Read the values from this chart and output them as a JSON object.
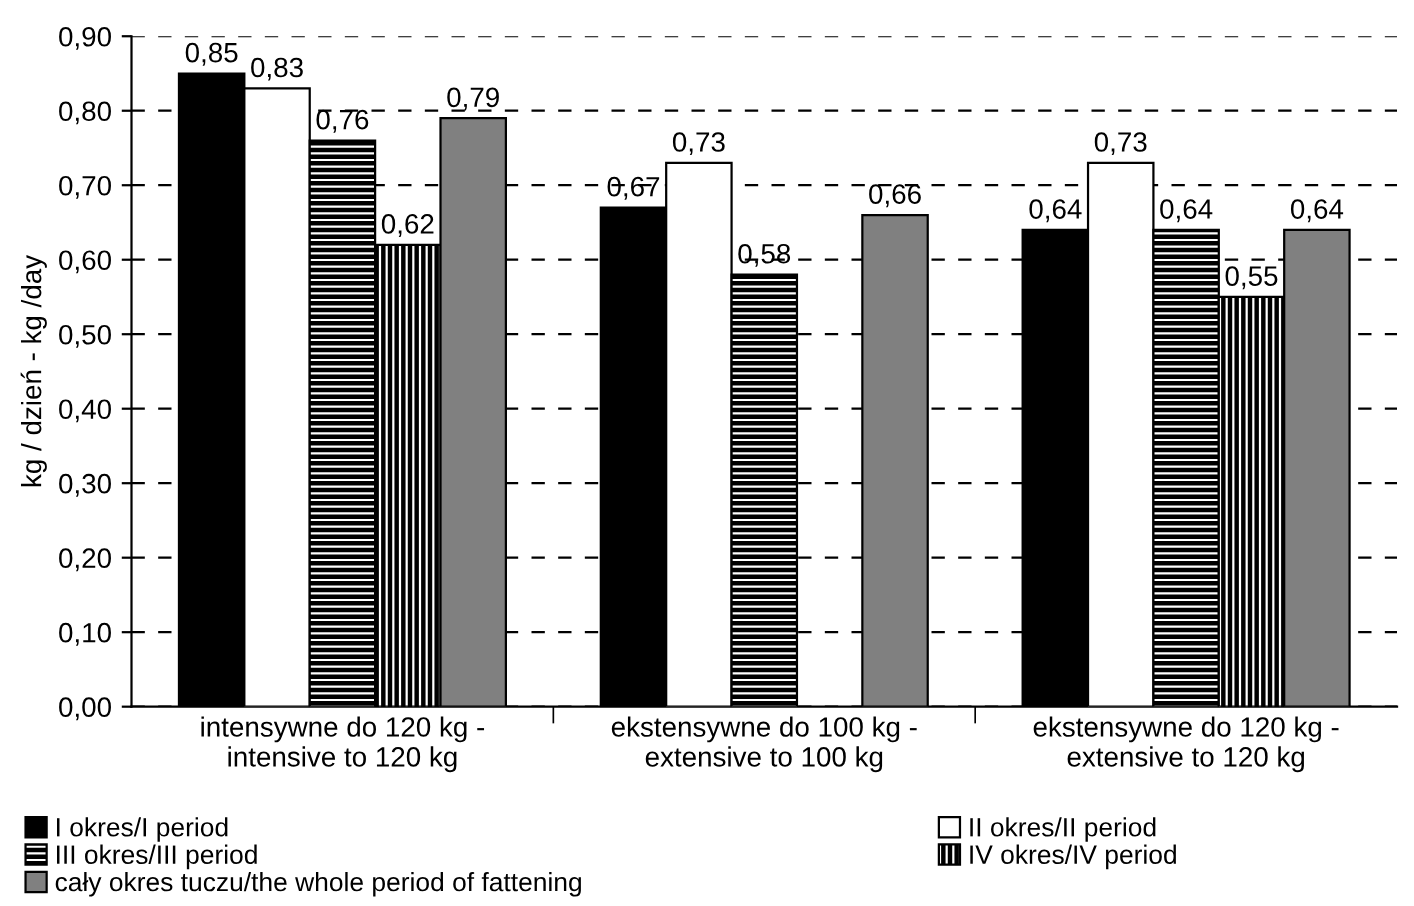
{
  "chart_data": {
    "type": "bar",
    "ylabel": "kg / dzień - kg /day",
    "categories": [
      "intensywne do 120 kg -\nintensive to 120 kg",
      "ekstensywne do 100 kg -\nextensive to 100 kg",
      "ekstensywne do 120 kg -\nextensive to 120 kg"
    ],
    "series": [
      {
        "name": "I okres/I period",
        "color": "#000000",
        "values": [
          0.85,
          0.67,
          0.64
        ],
        "value_labels": [
          "0,85",
          "0,67",
          "0,64"
        ]
      },
      {
        "name": "II okres/II period",
        "color": "#ffffff",
        "values": [
          0.83,
          0.73,
          0.73
        ],
        "value_labels": [
          "0,83",
          "0,73",
          "0,73"
        ]
      },
      {
        "name": "III okres/III period",
        "color": "#000000",
        "values": [
          0.76,
          0.58,
          0.64
        ],
        "value_labels": [
          "0,76",
          "0,58",
          "0,64"
        ]
      },
      {
        "name": "IV okres/IV period",
        "color": "#000000",
        "values": [
          0.62,
          null,
          0.55
        ],
        "value_labels": [
          "0,62",
          null,
          "0,55"
        ]
      },
      {
        "name": "cały okres tuczu/the whole period of fattening",
        "color": "#808080",
        "values": [
          0.79,
          0.66,
          0.64
        ],
        "value_labels": [
          "0,79",
          "0,66",
          "0,64"
        ]
      }
    ],
    "ylim": [
      0,
      0.9
    ],
    "yticks": [
      {
        "value": 0,
        "label": "0,00"
      },
      {
        "value": 0.1,
        "label": "0,10"
      },
      {
        "value": 0.2,
        "label": "0,20"
      },
      {
        "value": 0.3,
        "label": "0,30"
      },
      {
        "value": 0.4,
        "label": "0,40"
      },
      {
        "value": 0.5,
        "label": "0,50"
      },
      {
        "value": 0.6,
        "label": "0,60"
      },
      {
        "value": 0.7,
        "label": "0,70"
      },
      {
        "value": 0.8,
        "label": "0,80"
      },
      {
        "value": 0.9,
        "label": "0,90"
      }
    ],
    "grid": "y",
    "legend": "bottom"
  }
}
